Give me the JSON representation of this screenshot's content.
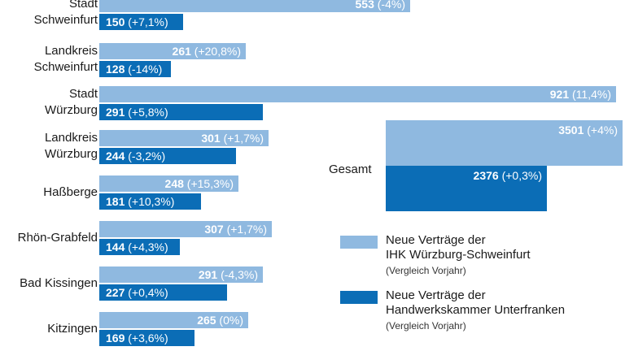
{
  "chart_data": {
    "type": "bar",
    "orientation": "horizontal",
    "categories": [
      [
        "Stadt",
        "Schweinfurt"
      ],
      [
        "Landkreis",
        "Schweinfurt"
      ],
      [
        "Stadt",
        "Würzburg"
      ],
      [
        "Landkreis",
        "Würzburg"
      ],
      [
        "Haßberge"
      ],
      [
        "Rhön-Grabfeld"
      ],
      [
        "Bad Kissingen"
      ],
      [
        "Kitzingen"
      ]
    ],
    "series": [
      {
        "name": "Neue Verträge der IHK Würzburg-Schweinfurt",
        "color": "#8fb9e0",
        "values": [
          553,
          261,
          921,
          301,
          248,
          307,
          291,
          265
        ],
        "changes": [
          "(-4%)",
          "(+20,8%)",
          "(11,4%)",
          "(+1,7%)",
          "(+15,3%)",
          "(+1,7%)",
          "(-4,3%)",
          "(0%)"
        ]
      },
      {
        "name": "Neue Verträge der Handwerkskammer Unterfranken",
        "color": "#0b6db6",
        "values": [
          150,
          128,
          291,
          244,
          181,
          144,
          227,
          169
        ],
        "changes": [
          "(+7,1%)",
          "(-14%)",
          "(+5,8%)",
          "(-3,2%)",
          "(+10,3%)",
          "(+4,3%)",
          "(+0,4%)",
          "(+3,6%)"
        ]
      }
    ],
    "total": {
      "label": "Gesamt",
      "ihk": {
        "value": 3501,
        "change": "(+4%)"
      },
      "hwk": {
        "value": 2376,
        "change": "(+0,3%)"
      }
    },
    "legend": [
      {
        "lines": [
          "Neue Verträge der",
          "IHK Würzburg-Schweinfurt"
        ],
        "note": "(Vergleich Vorjahr)",
        "color": "#8fb9e0"
      },
      {
        "lines": [
          "Neue Verträge der",
          "Handwerkskammer Unterfranken"
        ],
        "note": "(Vergleich Vorjahr)",
        "color": "#0b6db6"
      }
    ]
  }
}
